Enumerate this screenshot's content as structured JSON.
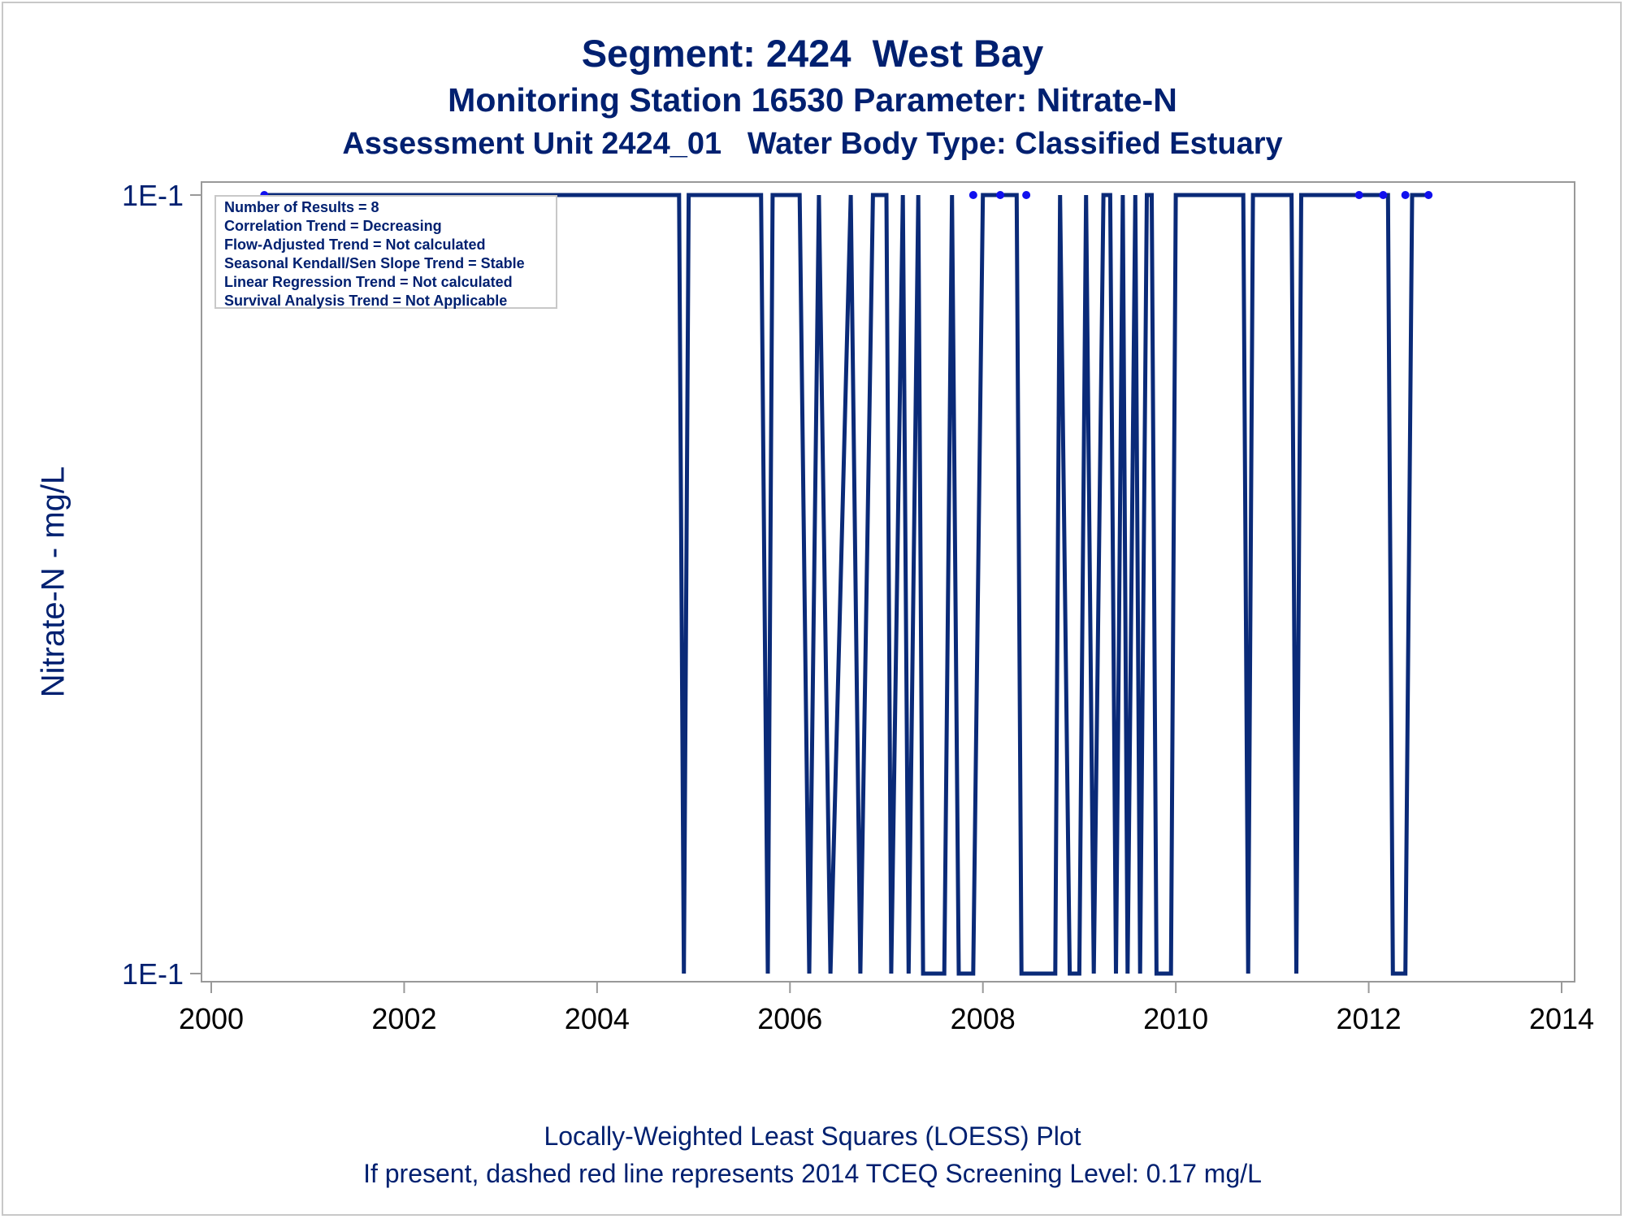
{
  "titles": {
    "line1": "Segment: 2424  West Bay",
    "line2": "Monitoring Station 16530 Parameter: Nitrate-N",
    "line3": "Assessment Unit 2424_01   Water Body Type: Classified Estuary"
  },
  "footnotes": {
    "line1": "Locally-Weighted Least Squares (LOESS) Plot",
    "line2": "If present, dashed red line represents 2014 TCEQ Screening Level: 0.17 mg/L"
  },
  "stats_box": [
    "Number of Results = 8",
    "Correlation Trend = Decreasing",
    "Flow-Adjusted Trend = Not calculated",
    "Seasonal Kendall/Sen Slope Trend = Stable",
    "Linear Regression Trend = Not calculated",
    "Survival Analysis Trend = Not Applicable"
  ],
  "colors": {
    "text": "#002070",
    "line": "#0a2a78",
    "points": "#1010ee",
    "frame": "#c8c8c8",
    "axis": "#999999"
  },
  "chart_data": {
    "type": "line",
    "title": "Segment: 2424  West Bay",
    "xlabel": "",
    "ylabel": "Nitrate-N - mg/L",
    "xlim": [
      2000,
      2014
    ],
    "x_ticks": [
      "2000",
      "2002",
      "2004",
      "2006",
      "2008",
      "2010",
      "2012",
      "2014"
    ],
    "y_ticks": [
      "1E-1",
      "1E-1"
    ],
    "y_levels": [
      "high",
      "low"
    ],
    "grid": false,
    "legend": "top-left",
    "series": [
      {
        "kind": "loess-line",
        "x": [
          2000.55,
          2004.85,
          2004.9,
          2004.95,
          2005.7,
          2005.77,
          2005.82,
          2006.1,
          2006.2,
          2006.3,
          2006.42,
          2006.63,
          2006.73,
          2006.86
        ],
        "y": [
          "high",
          "high",
          "low",
          "high",
          "high",
          "low",
          "high",
          "high",
          "low",
          "high",
          "low",
          "high",
          "low",
          "high"
        ]
      },
      {
        "kind": "observations",
        "x": [
          2000.55,
          2007.9,
          2008.18,
          2008.45,
          2011.9,
          2012.15,
          2012.38,
          2012.62
        ],
        "y": [
          0.1,
          0.1,
          0.1,
          0.1,
          0.1,
          0.1,
          0.1,
          0.1
        ]
      }
    ]
  }
}
